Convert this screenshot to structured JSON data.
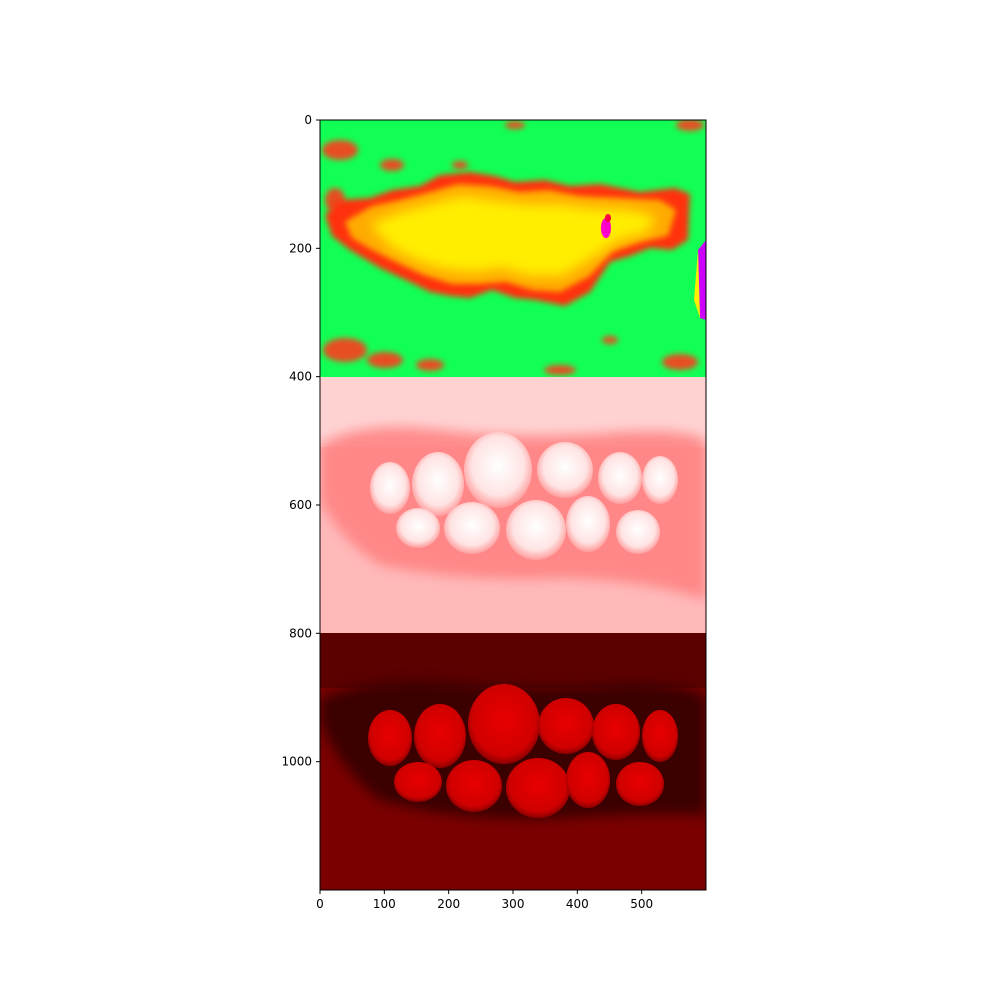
{
  "figure": {
    "type": "image-panel-stack",
    "panels": [
      {
        "name": "thermal-hue-map",
        "description_colors": [
          "#00ff5a",
          "#ff2200",
          "#ffee00",
          "#ff00ff"
        ]
      },
      {
        "name": "light-red-teeth",
        "description_colors": [
          "#ffcccc",
          "#ff8a8a",
          "#ffffff"
        ]
      },
      {
        "name": "dark-red-teeth",
        "description_colors": [
          "#6a0000",
          "#cc0000",
          "#e30000"
        ]
      }
    ],
    "x_axis": {
      "range": [
        0,
        600
      ],
      "ticks": [
        "0",
        "100",
        "200",
        "300",
        "400",
        "500"
      ],
      "tick_values": [
        0,
        100,
        200,
        300,
        400,
        500
      ]
    },
    "y_axis": {
      "range": [
        0,
        1200
      ],
      "ticks": [
        "0",
        "200",
        "400",
        "600",
        "800",
        "1000"
      ],
      "tick_values": [
        0,
        200,
        400,
        600,
        800,
        1000
      ],
      "inverted": true
    }
  }
}
